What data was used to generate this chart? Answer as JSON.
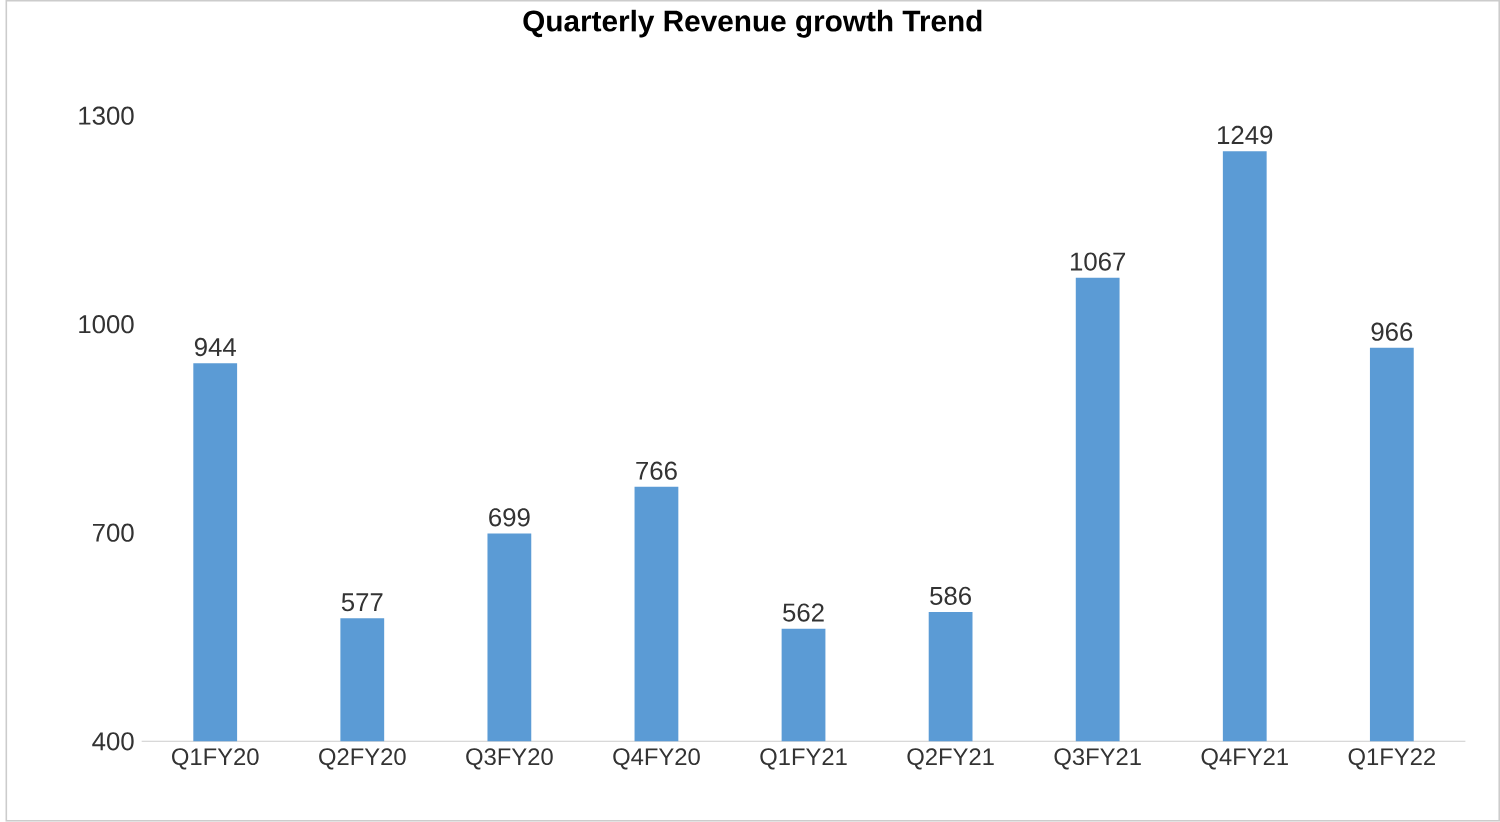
{
  "chart_data": {
    "type": "bar",
    "title": "Quarterly Revenue growth Trend",
    "categories": [
      "Q1FY20",
      "Q2FY20",
      "Q3FY20",
      "Q4FY20",
      "Q1FY21",
      "Q2FY21",
      "Q3FY21",
      "Q4FY21",
      "Q1FY22"
    ],
    "values": [
      944,
      577,
      699,
      766,
      562,
      586,
      1067,
      1249,
      966
    ],
    "color": "#5b9bd5",
    "ylim": [
      400,
      1300
    ],
    "yticks": [
      400,
      700,
      1000,
      1300
    ],
    "data_labels": true
  }
}
